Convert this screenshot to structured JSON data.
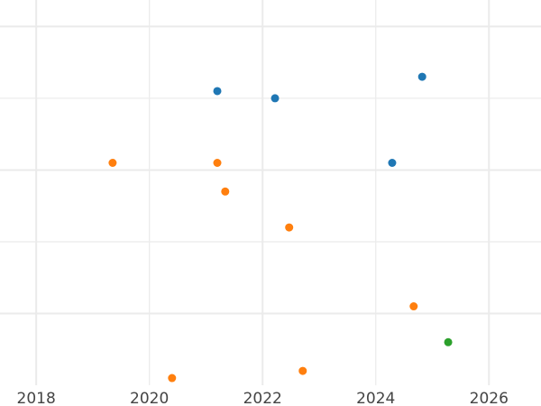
{
  "chart_data": {
    "type": "scatter",
    "title": "",
    "xlabel": "",
    "ylabel": "",
    "xlim": [
      2017.36,
      2026.92
    ],
    "ylim": [
      0,
      5.37
    ],
    "x_ticks": [
      2018,
      2020,
      2022,
      2024,
      2026
    ],
    "x_tick_labels": [
      "2018",
      "2020",
      "2022",
      "2024",
      "2026"
    ],
    "y_gridlines": [
      1,
      2,
      3,
      4,
      5
    ],
    "y_tick_labels_shown": false,
    "grid": true,
    "series": [
      {
        "color": "#1f77b4",
        "points": [
          [
            2021.2,
            4.1
          ],
          [
            2022.22,
            4.0
          ],
          [
            2024.82,
            4.3
          ],
          [
            2024.29,
            3.1
          ]
        ]
      },
      {
        "color": "#ff7f0e",
        "points": [
          [
            2019.35,
            3.1
          ],
          [
            2021.2,
            3.1
          ],
          [
            2021.34,
            2.7
          ],
          [
            2022.47,
            2.2
          ],
          [
            2024.67,
            1.1
          ],
          [
            2022.71,
            0.2
          ],
          [
            2020.4,
            0.1
          ]
        ]
      },
      {
        "color": "#2ca02c",
        "points": [
          [
            2025.28,
            0.6
          ]
        ]
      }
    ]
  }
}
